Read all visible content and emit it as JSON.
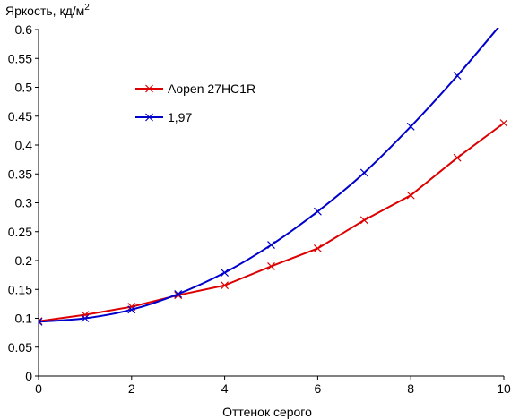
{
  "chart_data": {
    "type": "line",
    "ylabel_main": "Яркость, кд/м",
    "ylabel_sup": "2",
    "xlabel": "Оттенок серого",
    "xlim": [
      0,
      10
    ],
    "ylim": [
      0,
      0.6
    ],
    "x_ticks": [
      "0",
      "2",
      "4",
      "6",
      "8",
      "10"
    ],
    "x_tick_values": [
      0,
      2,
      4,
      6,
      8,
      10
    ],
    "y_ticks": [
      "0",
      "0.05",
      "0.1",
      "0.15",
      "0.2",
      "0.25",
      "0.3",
      "0.35",
      "0.4",
      "0.45",
      "0.5",
      "0.55",
      "0.6"
    ],
    "y_tick_values": [
      0,
      0.05,
      0.1,
      0.15,
      0.2,
      0.25,
      0.3,
      0.35,
      0.4,
      0.45,
      0.5,
      0.55,
      0.6
    ],
    "grid": false,
    "legend_position": "upper-left",
    "series": [
      {
        "name": "Aopen 27HC1R",
        "color": "#dd0000",
        "marker": "x",
        "x": [
          0,
          1,
          2,
          3,
          4,
          5,
          6,
          7,
          8,
          9,
          10
        ],
        "y": [
          0.095,
          0.106,
          0.12,
          0.14,
          0.157,
          0.19,
          0.221,
          0.27,
          0.313,
          0.378,
          0.438
        ]
      },
      {
        "name": "1,97",
        "color": "#0000cc",
        "marker": "x",
        "x": [
          0,
          1,
          2,
          3,
          4,
          5,
          6,
          7,
          8,
          9,
          10
        ],
        "y": [
          0.094,
          0.1,
          0.115,
          0.142,
          0.179,
          0.227,
          0.285,
          0.352,
          0.432,
          0.52,
          0.615
        ]
      }
    ]
  }
}
